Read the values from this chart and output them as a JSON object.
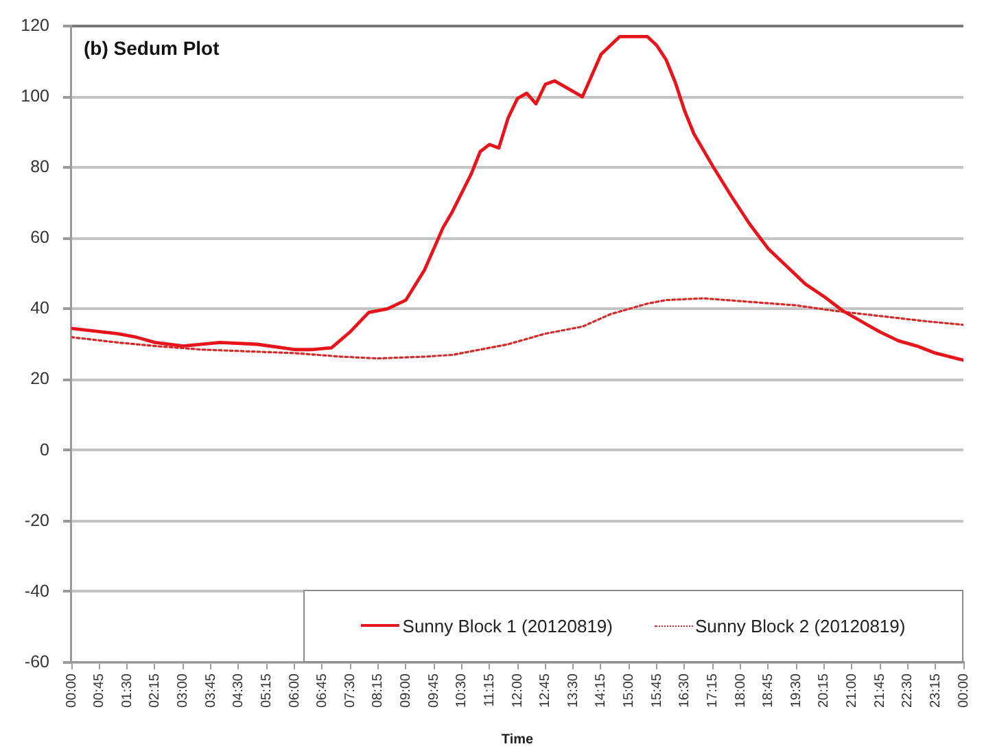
{
  "chart_data": {
    "type": "line",
    "title": "(b) Sedum Plot",
    "xlabel": "Time",
    "xlim": [
      0,
      24
    ],
    "xticks": [
      {
        "value": 0,
        "label": "00:00"
      },
      {
        "value": 0.75,
        "label": "00:45"
      },
      {
        "value": 1.5,
        "label": "01:30"
      },
      {
        "value": 2.25,
        "label": "02:15"
      },
      {
        "value": 3,
        "label": "03:00"
      },
      {
        "value": 3.75,
        "label": "03:45"
      },
      {
        "value": 4.5,
        "label": "04:30"
      },
      {
        "value": 5.25,
        "label": "05:15"
      },
      {
        "value": 6,
        "label": "06:00"
      },
      {
        "value": 6.75,
        "label": "06:45"
      },
      {
        "value": 7.5,
        "label": "07:30"
      },
      {
        "value": 8.25,
        "label": "08:15"
      },
      {
        "value": 9,
        "label": "09:00"
      },
      {
        "value": 9.75,
        "label": "09:45"
      },
      {
        "value": 10.5,
        "label": "10:30"
      },
      {
        "value": 11.25,
        "label": "11:15"
      },
      {
        "value": 12,
        "label": "12:00"
      },
      {
        "value": 12.75,
        "label": "12:45"
      },
      {
        "value": 13.5,
        "label": "13:30"
      },
      {
        "value": 14.25,
        "label": "14:15"
      },
      {
        "value": 15,
        "label": "15:00"
      },
      {
        "value": 15.75,
        "label": "15:45"
      },
      {
        "value": 16.5,
        "label": "16:30"
      },
      {
        "value": 17.25,
        "label": "17:15"
      },
      {
        "value": 18,
        "label": "18:00"
      },
      {
        "value": 18.75,
        "label": "18:45"
      },
      {
        "value": 19.5,
        "label": "19:30"
      },
      {
        "value": 20.25,
        "label": "20:15"
      },
      {
        "value": 21,
        "label": "21:00"
      },
      {
        "value": 21.75,
        "label": "21:45"
      },
      {
        "value": 22.5,
        "label": "22:30"
      },
      {
        "value": 23.25,
        "label": "23:15"
      },
      {
        "value": 24,
        "label": "00:00"
      }
    ],
    "ylim": [
      -60,
      120
    ],
    "yticks": [
      -60,
      -40,
      -20,
      0,
      20,
      40,
      60,
      80,
      100,
      120
    ],
    "grid": "y",
    "legend": "bottom right",
    "marker": "none",
    "series": [
      {
        "name": "Sunny Block 1 (20120819)",
        "color": "#e8141c",
        "line_style": "solid",
        "x": [
          0,
          1.25,
          1.75,
          2.25,
          3,
          4,
          5,
          6,
          6.5,
          7,
          7.5,
          8,
          8.5,
          9,
          9.5,
          10,
          10.25,
          10.75,
          11,
          11.25,
          11.5,
          11.75,
          12,
          12.25,
          12.5,
          12.75,
          13,
          13.25,
          13.5,
          13.75,
          14.25,
          14.75,
          15.5,
          15.75,
          16,
          16.25,
          16.5,
          16.75,
          17.25,
          17.75,
          18.25,
          18.75,
          19.25,
          19.75,
          20.25,
          20.75,
          21.25,
          21.75,
          22.25,
          22.75,
          23.25,
          24
        ],
        "values": [
          34.5,
          33,
          32,
          30.5,
          29.5,
          30.5,
          30,
          28.5,
          28.5,
          29,
          33.5,
          39,
          40,
          42.5,
          51,
          63,
          67.5,
          78,
          84.5,
          86.5,
          85.5,
          94,
          99.5,
          101,
          98,
          103.5,
          104.5,
          103,
          101.5,
          100,
          112,
          117,
          117,
          114.5,
          110.5,
          104,
          96,
          89.5,
          80.5,
          72,
          64,
          57,
          52,
          47,
          43.5,
          39.5,
          36.5,
          33.5,
          31,
          29.5,
          27.5,
          25.5
        ]
      },
      {
        "name": "Sunny Block 2 (20120819)",
        "color": "#d42a2a",
        "line_style": "dotted",
        "x": [
          0,
          1.25,
          2.25,
          3.5,
          4.75,
          6,
          7.25,
          8.25,
          9.5,
          10.25,
          11,
          11.75,
          12.75,
          13.75,
          14.5,
          15.5,
          16,
          17,
          18.25,
          19.5,
          20.5,
          21.75,
          23,
          24
        ],
        "values": [
          32,
          30.5,
          29.5,
          28.5,
          28,
          27.5,
          26.5,
          26,
          26.5,
          27,
          28.5,
          30,
          33,
          35,
          38.5,
          41.5,
          42.5,
          43,
          42,
          41,
          39.5,
          38,
          36.5,
          35.5
        ]
      }
    ]
  }
}
